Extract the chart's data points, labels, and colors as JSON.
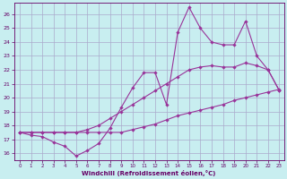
{
  "xlabel": "Windchill (Refroidissement éolien,°C)",
  "background_color": "#c8eef0",
  "grid_color": "#aaaacc",
  "line_color": "#993399",
  "xlim_min": -0.5,
  "xlim_max": 23.4,
  "ylim_min": 15.5,
  "ylim_max": 26.8,
  "yticks": [
    16,
    17,
    18,
    19,
    20,
    21,
    22,
    23,
    24,
    25,
    26
  ],
  "xticks": [
    0,
    1,
    2,
    3,
    4,
    5,
    6,
    7,
    8,
    9,
    10,
    11,
    12,
    13,
    14,
    15,
    16,
    17,
    18,
    19,
    20,
    21,
    22,
    23
  ],
  "line1_x": [
    0,
    1,
    2,
    3,
    4,
    5,
    6,
    7,
    8,
    9,
    10,
    11,
    12,
    13,
    14,
    15,
    16,
    17,
    18,
    19,
    20,
    21,
    22,
    23
  ],
  "line1_y": [
    17.5,
    17.5,
    17.5,
    17.5,
    17.5,
    17.5,
    17.5,
    17.5,
    17.5,
    17.5,
    17.7,
    17.9,
    18.1,
    18.4,
    18.7,
    18.9,
    19.1,
    19.3,
    19.5,
    19.8,
    20.0,
    20.2,
    20.4,
    20.6
  ],
  "line2_x": [
    0,
    1,
    2,
    3,
    4,
    5,
    6,
    7,
    8,
    9,
    10,
    11,
    12,
    13,
    14,
    15,
    16,
    17,
    18,
    19,
    20,
    21,
    22,
    23
  ],
  "line2_y": [
    17.5,
    17.5,
    17.5,
    17.5,
    17.5,
    17.5,
    17.7,
    18.0,
    18.5,
    19.0,
    19.5,
    20.0,
    20.5,
    21.0,
    21.5,
    22.0,
    22.2,
    22.3,
    22.2,
    22.2,
    22.5,
    22.3,
    22.0,
    20.5
  ],
  "line3_x": [
    0,
    1,
    2,
    3,
    4,
    5,
    6,
    7,
    8,
    9,
    10,
    11,
    12,
    13,
    14,
    15,
    16,
    17,
    18,
    19,
    20,
    21,
    22,
    23
  ],
  "line3_y": [
    17.5,
    17.3,
    17.2,
    16.8,
    16.5,
    15.8,
    16.2,
    16.7,
    17.8,
    19.3,
    20.7,
    21.8,
    21.8,
    19.5,
    24.7,
    26.5,
    25.0,
    24.0,
    23.8,
    23.8,
    25.5,
    23.0,
    22.0,
    20.5
  ]
}
